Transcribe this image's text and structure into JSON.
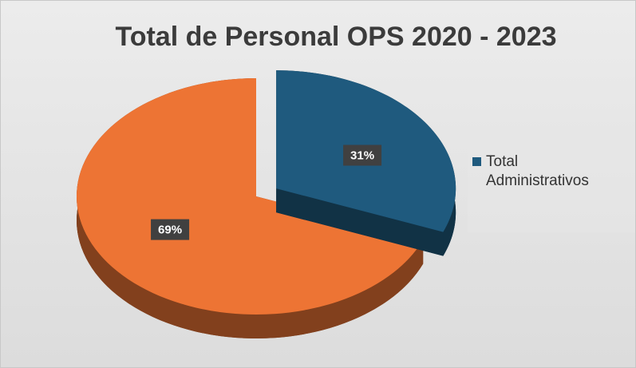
{
  "chart_data": {
    "type": "pie",
    "title": "Total de Personal OPS 2020 - 2023",
    "categories": [
      "Total Administrativos",
      null
    ],
    "values": [
      31,
      69
    ],
    "value_labels": [
      "31%",
      "69%"
    ],
    "colors": [
      "#1f5a7e",
      "#ed7434"
    ],
    "legend": "right"
  }
}
